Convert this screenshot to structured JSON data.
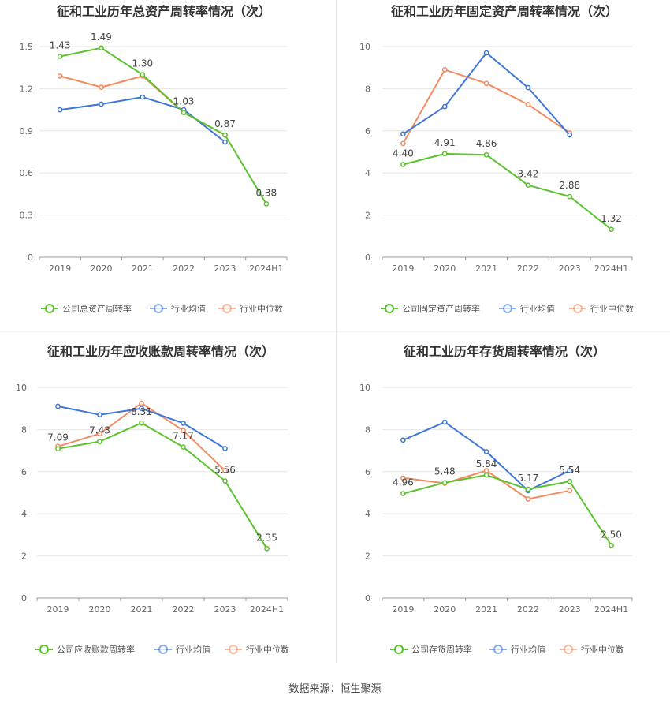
{
  "source_text": "数据来源：恒生聚源",
  "colors": {
    "company": "#5cc22e",
    "industry_avg": "#3f77d8",
    "industry_median": "#f28c62",
    "grid": "#e6e6e6",
    "axis_text": "#666666",
    "label_text": "#444444"
  },
  "chart_data": [
    {
      "type": "line",
      "title": "征和工业历年总资产周转率情况（次）",
      "categories": [
        "2019",
        "2020",
        "2021",
        "2022",
        "2023",
        "2024H1"
      ],
      "ylim": [
        0,
        1.5
      ],
      "yticks": [
        "0",
        "0.3",
        "0.6",
        "0.9",
        "1.2",
        "1.5"
      ],
      "series": [
        {
          "name": "公司总资产周转率",
          "values": [
            1.43,
            1.49,
            1.3,
            1.03,
            0.87,
            0.38
          ],
          "labels": [
            "1.43",
            "1.49",
            "1.30",
            "1.03",
            "0.87",
            "0.38"
          ]
        },
        {
          "name": "行业均值",
          "values": [
            1.05,
            1.09,
            1.14,
            1.05,
            0.82,
            null
          ]
        },
        {
          "name": "行业中位数",
          "values": [
            1.29,
            1.21,
            1.29,
            1.03,
            0.87,
            null
          ]
        }
      ],
      "legend": "bottom",
      "grid": true
    },
    {
      "type": "line",
      "title": "征和工业历年固定资产周转率情况（次）",
      "categories": [
        "2019",
        "2020",
        "2021",
        "2022",
        "2023",
        "2024H1"
      ],
      "ylim": [
        0,
        10
      ],
      "yticks": [
        "0",
        "2",
        "4",
        "6",
        "8",
        "10"
      ],
      "series": [
        {
          "name": "公司固定资产周转率",
          "values": [
            4.4,
            4.91,
            4.86,
            3.42,
            2.88,
            1.32
          ],
          "labels": [
            "4.40",
            "4.91",
            "4.86",
            "3.42",
            "2.88",
            "1.32"
          ]
        },
        {
          "name": "行业均值",
          "values": [
            5.85,
            7.15,
            9.7,
            8.05,
            5.8,
            null
          ]
        },
        {
          "name": "行业中位数",
          "values": [
            5.4,
            8.9,
            8.25,
            7.25,
            5.9,
            null
          ]
        }
      ],
      "legend": "bottom",
      "grid": true
    },
    {
      "type": "line",
      "title": "征和工业历年应收账款周转率情况（次）",
      "categories": [
        "2019",
        "2020",
        "2021",
        "2022",
        "2023",
        "2024H1"
      ],
      "ylim": [
        0,
        10
      ],
      "yticks": [
        "0",
        "2",
        "4",
        "6",
        "8",
        "10"
      ],
      "series": [
        {
          "name": "公司应收账款周转率",
          "values": [
            7.09,
            7.43,
            8.31,
            7.17,
            5.56,
            2.35
          ],
          "labels": [
            "7.09",
            "7.43",
            "8.31",
            "7.17",
            "5.56",
            "2.35"
          ]
        },
        {
          "name": "行业均值",
          "values": [
            9.1,
            8.7,
            9.0,
            8.3,
            7.1,
            null
          ]
        },
        {
          "name": "行业中位数",
          "values": [
            7.2,
            7.8,
            9.25,
            7.95,
            6.05,
            null
          ]
        }
      ],
      "legend": "bottom",
      "grid": true
    },
    {
      "type": "line",
      "title": "征和工业历年存货周转率情况（次）",
      "categories": [
        "2019",
        "2020",
        "2021",
        "2022",
        "2023",
        "2024H1"
      ],
      "ylim": [
        0,
        10
      ],
      "yticks": [
        "0",
        "2",
        "4",
        "6",
        "8",
        "10"
      ],
      "series": [
        {
          "name": "公司存货周转率",
          "values": [
            4.96,
            5.48,
            5.84,
            5.17,
            5.54,
            2.5
          ],
          "labels": [
            "4.96",
            "5.48",
            "5.84",
            "5.17",
            "5.54",
            "2.50"
          ]
        },
        {
          "name": "行业均值",
          "values": [
            7.5,
            8.35,
            6.95,
            5.1,
            6.05,
            null
          ]
        },
        {
          "name": "行业中位数",
          "values": [
            5.7,
            5.45,
            6.05,
            4.7,
            5.1,
            null
          ]
        }
      ],
      "legend": "bottom",
      "grid": true
    }
  ]
}
